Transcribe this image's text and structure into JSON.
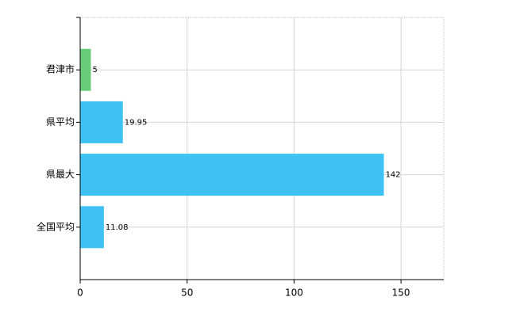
{
  "chart_data": {
    "type": "hbar",
    "categories": [
      "君津市",
      "県平均",
      "県最大",
      "全国平均"
    ],
    "values": [
      5,
      19.95,
      142,
      11.08
    ],
    "colors": [
      "#66cc77",
      "#3ec1f3",
      "#3ec1f3",
      "#3ec1f3"
    ],
    "xlim": [
      0,
      170
    ],
    "xticks": [
      0,
      50,
      100,
      150
    ],
    "grid": true
  }
}
